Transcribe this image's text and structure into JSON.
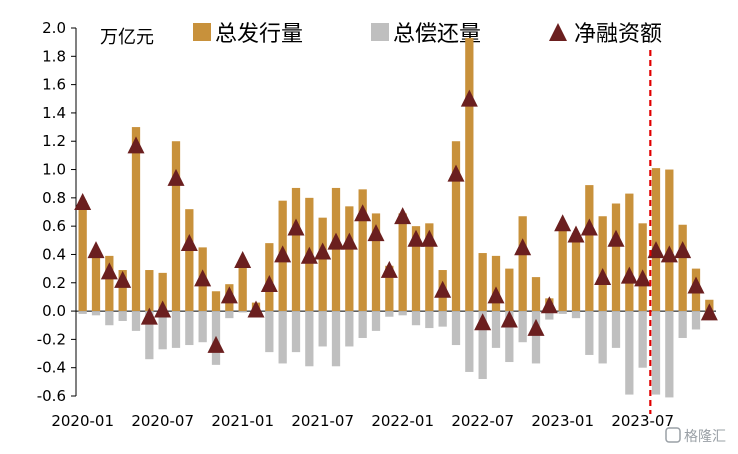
{
  "chart_data": {
    "type": "bar",
    "unit": "万亿元",
    "ylim": [
      -0.6,
      2.0
    ],
    "yticks": [
      "2.0",
      "1.8",
      "1.6",
      "1.4",
      "1.2",
      "1.0",
      "0.8",
      "0.6",
      "0.4",
      "0.2",
      "0.0",
      "-0.2",
      "-0.4",
      "-0.6"
    ],
    "xtick_labels": [
      {
        "index": 0,
        "label": "2020-01"
      },
      {
        "index": 6,
        "label": "2020-07"
      },
      {
        "index": 12,
        "label": "2021-01"
      },
      {
        "index": 18,
        "label": "2021-07"
      },
      {
        "index": 24,
        "label": "2022-01"
      },
      {
        "index": 30,
        "label": "2022-07"
      },
      {
        "index": 36,
        "label": "2023-01"
      },
      {
        "index": 42,
        "label": "2023-07"
      }
    ],
    "categories": [
      "2020-01",
      "2020-02",
      "2020-03",
      "2020-04",
      "2020-05",
      "2020-06",
      "2020-07",
      "2020-08",
      "2020-09",
      "2020-10",
      "2020-11",
      "2020-12",
      "2021-01",
      "2021-02",
      "2021-03",
      "2021-04",
      "2021-05",
      "2021-06",
      "2021-07",
      "2021-08",
      "2021-09",
      "2021-10",
      "2021-11",
      "2021-12",
      "2022-01",
      "2022-02",
      "2022-03",
      "2022-04",
      "2022-05",
      "2022-06",
      "2022-07",
      "2022-08",
      "2022-09",
      "2022-10",
      "2022-11",
      "2022-12",
      "2023-01",
      "2023-02",
      "2023-03",
      "2023-04",
      "2023-05",
      "2023-06",
      "2023-07",
      "2023-08",
      "2023-09",
      "2023-10",
      "2023-11",
      "2023-12"
    ],
    "series": [
      {
        "name": "总发行量",
        "type": "bar",
        "color": "#C8913B",
        "values": [
          0.78,
          0.44,
          0.39,
          0.29,
          1.3,
          0.29,
          0.27,
          1.2,
          0.72,
          0.45,
          0.14,
          0.19,
          0.36,
          0.06,
          0.48,
          0.78,
          0.87,
          0.8,
          0.66,
          0.87,
          0.74,
          0.86,
          0.69,
          0.32,
          0.69,
          0.6,
          0.62,
          0.29,
          1.2,
          1.93,
          0.41,
          0.39,
          0.3,
          0.67,
          0.24,
          0.09,
          0.58,
          0.55,
          0.89,
          0.67,
          0.76,
          0.83,
          0.62,
          1.01,
          1.0,
          0.61,
          0.3,
          0.08
        ]
      },
      {
        "name": "总偿还量",
        "type": "bar",
        "color": "#BFBFBF",
        "values": [
          -0.02,
          -0.03,
          -0.1,
          -0.07,
          -0.14,
          -0.34,
          -0.27,
          -0.26,
          -0.24,
          -0.22,
          -0.38,
          -0.05,
          -0.01,
          -0.03,
          -0.29,
          -0.37,
          -0.29,
          -0.39,
          -0.25,
          -0.39,
          -0.25,
          -0.19,
          -0.14,
          -0.04,
          -0.03,
          -0.1,
          -0.12,
          -0.11,
          -0.24,
          -0.43,
          -0.48,
          -0.26,
          -0.36,
          -0.22,
          -0.37,
          -0.06,
          -0.02,
          -0.05,
          -0.31,
          -0.37,
          -0.26,
          -0.59,
          -0.4,
          -0.59,
          -0.61,
          -0.19,
          -0.13,
          -0.06
        ]
      },
      {
        "name": "净融资额",
        "type": "triangle",
        "color": "#6B1F1F",
        "values": [
          0.76,
          0.42,
          0.27,
          0.21,
          1.16,
          -0.05,
          0.0,
          0.93,
          0.47,
          0.22,
          -0.25,
          0.1,
          0.35,
          0.0,
          0.18,
          0.39,
          0.58,
          0.38,
          0.41,
          0.48,
          0.48,
          0.68,
          0.54,
          0.28,
          0.66,
          0.5,
          0.5,
          0.14,
          0.96,
          1.49,
          -0.09,
          0.1,
          -0.07,
          0.44,
          -0.13,
          0.03,
          0.61,
          0.53,
          0.58,
          0.23,
          0.5,
          0.24,
          0.22,
          0.42,
          0.39,
          0.42,
          0.17,
          -0.02
        ]
      }
    ],
    "annotations": [
      {
        "type": "vline",
        "after_index": 42,
        "style": "dashed",
        "color": "#E00000"
      }
    ],
    "grid": false,
    "legend_position": "top"
  },
  "watermark": "格隆汇"
}
